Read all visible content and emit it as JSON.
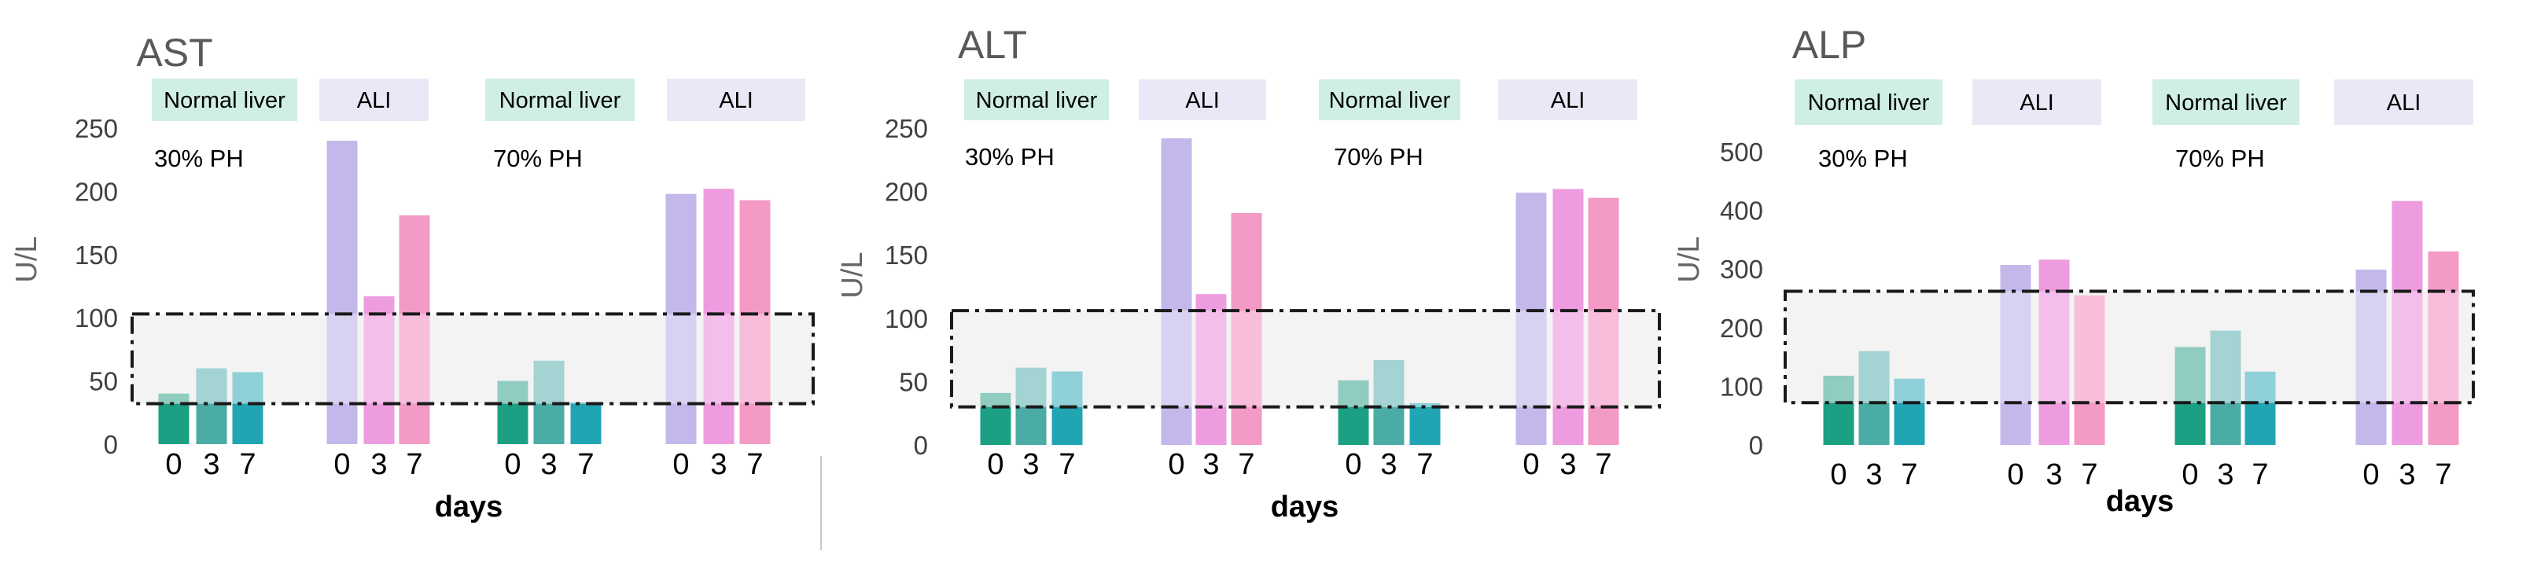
{
  "chart_data": [
    {
      "type": "bar",
      "title": "AST",
      "ylabel": "U/L",
      "xlabel": "days",
      "ylim": [
        0,
        250
      ],
      "yticks": [
        0,
        50,
        100,
        150,
        200,
        250
      ],
      "normal_range": [
        32,
        103
      ],
      "headers": [
        "Normal liver",
        "ALI",
        "Normal liver",
        "ALI"
      ],
      "annotations": [
        "30% PH",
        "70% PH"
      ],
      "day_labels": [
        "0",
        "3",
        "7"
      ],
      "groups": [
        {
          "name": "30% PH Normal liver",
          "values": [
            40,
            60,
            57
          ]
        },
        {
          "name": "30% PH ALI",
          "values": [
            240,
            117,
            181
          ]
        },
        {
          "name": "70% PH Normal liver",
          "values": [
            50,
            66,
            33
          ]
        },
        {
          "name": "70% PH ALI",
          "values": [
            198,
            202,
            193
          ]
        }
      ]
    },
    {
      "type": "bar",
      "title": "ALT",
      "ylabel": "U/L",
      "xlabel": "days",
      "ylim": [
        0,
        250
      ],
      "yticks": [
        0,
        50,
        100,
        150,
        200,
        250
      ],
      "normal_range": [
        30,
        106
      ],
      "headers": [
        "Normal liver",
        "ALI",
        "Normal liver",
        "ALI"
      ],
      "annotations": [
        "30% PH",
        "70% PH"
      ],
      "day_labels": [
        "0",
        "3",
        "7"
      ],
      "groups": [
        {
          "name": "30% PH Normal liver",
          "values": [
            41,
            61,
            58
          ]
        },
        {
          "name": "30% PH ALI",
          "values": [
            242,
            119,
            183
          ]
        },
        {
          "name": "70% PH Normal liver",
          "values": [
            51,
            67,
            33
          ]
        },
        {
          "name": "70% PH ALI",
          "values": [
            199,
            202,
            195
          ]
        }
      ]
    },
    {
      "type": "bar",
      "title": "ALP",
      "ylabel": "U/L",
      "xlabel": "days",
      "ylim": [
        0,
        500
      ],
      "yticks": [
        0,
        100,
        200,
        300,
        400,
        500
      ],
      "normal_range": [
        72,
        262
      ],
      "headers": [
        "Normal liver",
        "ALI",
        "Normal liver",
        "ALI"
      ],
      "annotations": [
        "30% PH",
        "70% PH"
      ],
      "day_labels": [
        "0",
        "3",
        "7"
      ],
      "groups": [
        {
          "name": "30% PH Normal liver",
          "values": [
            118,
            160,
            113
          ]
        },
        {
          "name": "30% PH ALI",
          "values": [
            307,
            316,
            255
          ]
        },
        {
          "name": "70% PH Normal liver",
          "values": [
            167,
            195,
            125
          ]
        },
        {
          "name": "70% PH ALI",
          "values": [
            299,
            416,
            330
          ]
        }
      ]
    }
  ],
  "colors": {
    "normal_solid": [
      "#1ca084",
      "#4aaca4",
      "#21a5b3"
    ],
    "normal_light": [
      "#90ccc0",
      "#a3d3d3",
      "#8fd0d9"
    ],
    "ali_bars": [
      "#c4b8ea",
      "#ee9ce0",
      "#f39ac6"
    ],
    "normal_header": "#cfeee6",
    "ali_header": "#eae8f6",
    "band_fill": "#f3f3f3"
  }
}
